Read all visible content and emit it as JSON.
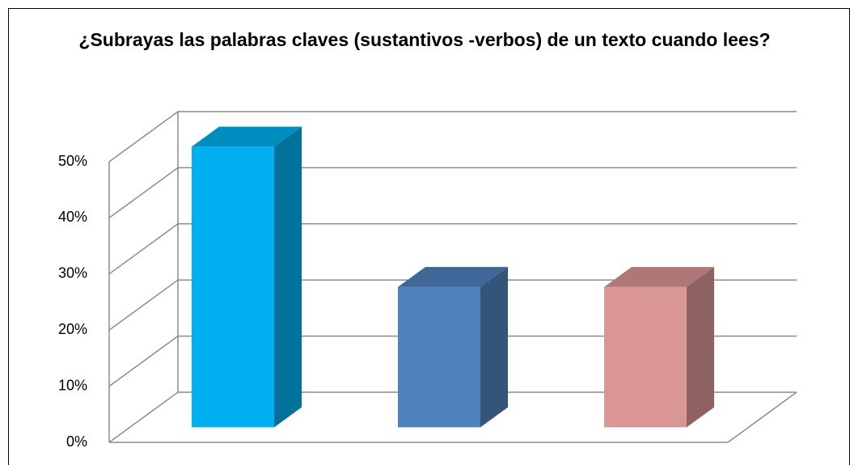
{
  "chart_data": {
    "type": "bar3d",
    "title": "¿Subrayas las palabras claves (sustantivos -verbos) de un texto cuando lees?",
    "categories": [
      null,
      null,
      null
    ],
    "values": [
      50,
      25,
      25
    ],
    "colors": [
      "#00b0f0",
      "#4f81bd",
      "#d99694"
    ],
    "ylim": [
      0,
      50
    ],
    "yticks": [
      {
        "value": 0,
        "label": "0%"
      },
      {
        "value": 10,
        "label": "10%"
      },
      {
        "value": 20,
        "label": "20%"
      },
      {
        "value": 30,
        "label": "30%"
      },
      {
        "value": 40,
        "label": "40%"
      },
      {
        "value": 50,
        "label": "50%"
      }
    ],
    "grid": true
  }
}
